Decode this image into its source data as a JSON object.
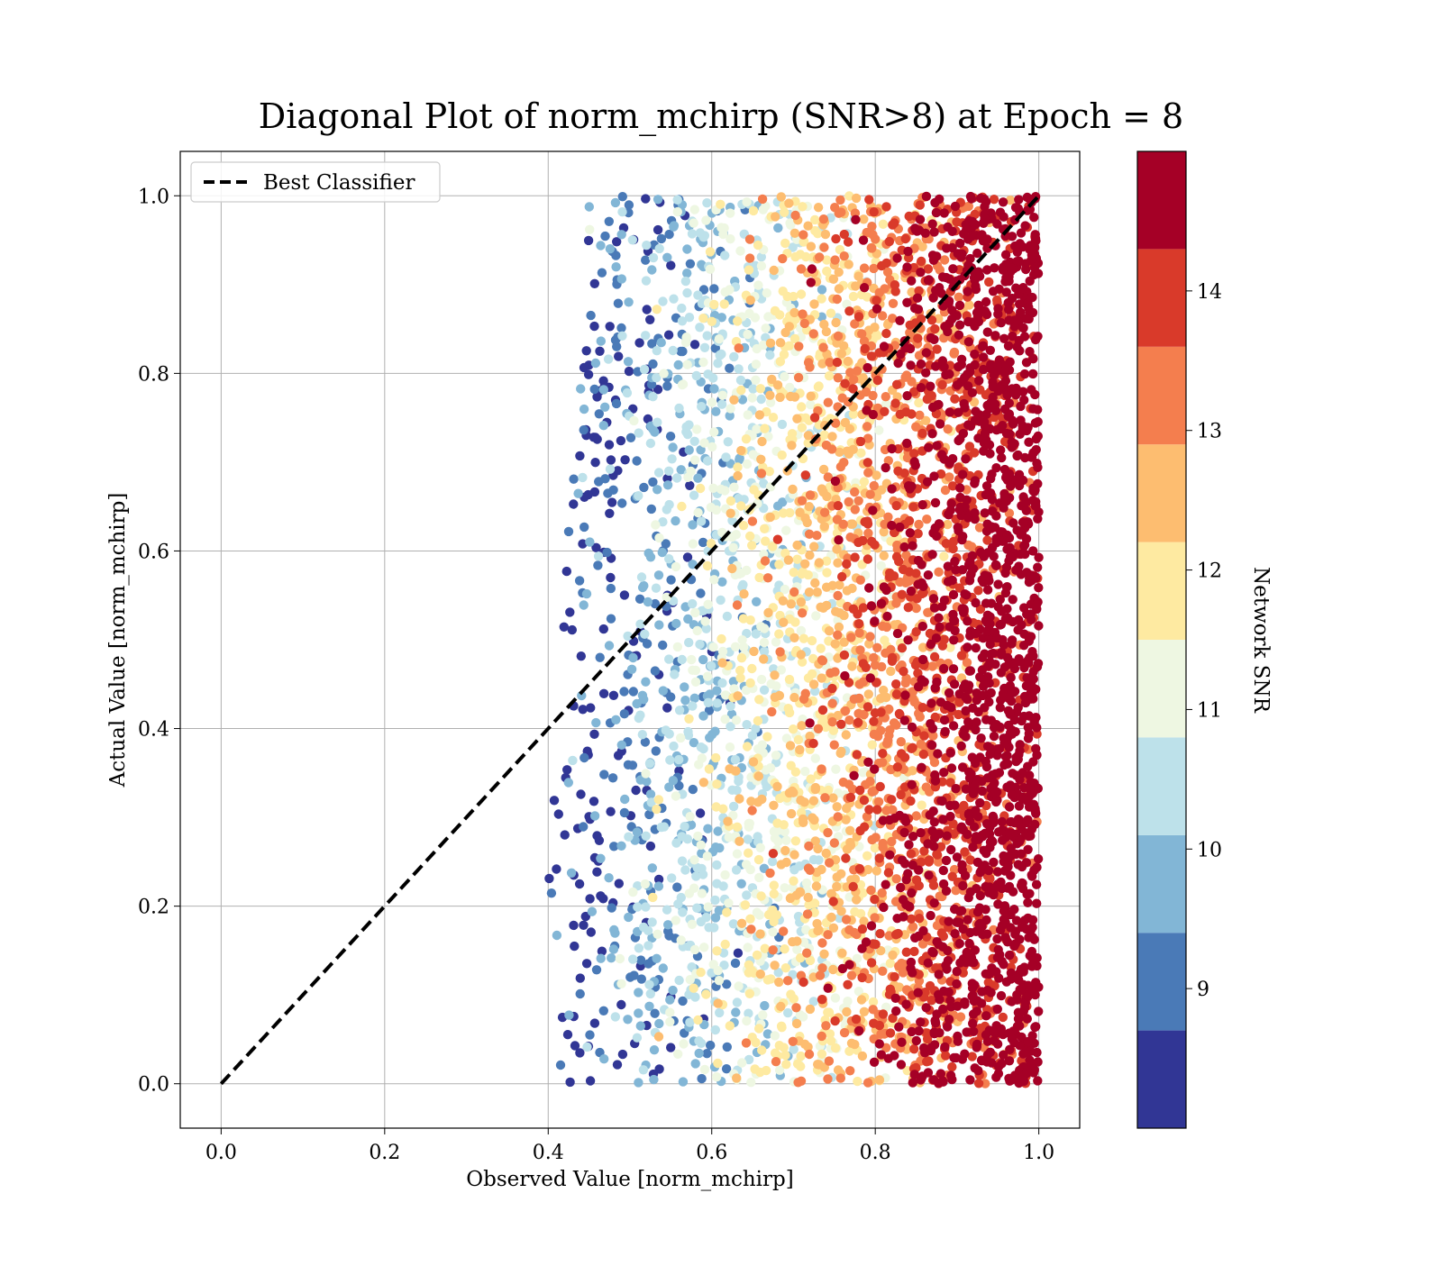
{
  "chart_data": {
    "type": "scatter",
    "title": "Diagonal Plot of norm_mchirp (SNR>8) at Epoch = 8",
    "xlabel": "Observed Value [norm_mchirp]",
    "ylabel": "Actual Value [norm_mchirp]",
    "xlim": [
      -0.05,
      1.05
    ],
    "ylim": [
      -0.05,
      1.05
    ],
    "xticks": [
      "0.0",
      "0.2",
      "0.4",
      "0.6",
      "0.8",
      "1.0"
    ],
    "yticks": [
      "0.0",
      "0.2",
      "0.4",
      "0.6",
      "0.8",
      "1.0"
    ],
    "grid": true,
    "legend": {
      "position": "top-left",
      "entries": [
        "Best Classifier"
      ]
    },
    "reference_line": {
      "name": "Best Classifier",
      "style": "dashed",
      "color": "#000000",
      "x": [
        0.0,
        1.0
      ],
      "y": [
        0.0,
        1.0
      ]
    },
    "colorbar": {
      "label": "Network SNR",
      "range": [
        8.0,
        15.0
      ],
      "ticks": [
        "9",
        "10",
        "11",
        "12",
        "13",
        "14"
      ],
      "bins": [
        {
          "from": 8.0,
          "to": 8.7,
          "color": "#313695"
        },
        {
          "from": 8.7,
          "to": 9.4,
          "color": "#4a7ab7"
        },
        {
          "from": 9.4,
          "to": 10.1,
          "color": "#82b6d6"
        },
        {
          "from": 10.1,
          "to": 10.8,
          "color": "#bde1ea"
        },
        {
          "from": 10.8,
          "to": 11.5,
          "color": "#eef7e2"
        },
        {
          "from": 11.5,
          "to": 12.2,
          "color": "#feeaa1"
        },
        {
          "from": 12.2,
          "to": 12.9,
          "color": "#fdbd70"
        },
        {
          "from": 12.9,
          "to": 13.6,
          "color": "#f47e4e"
        },
        {
          "from": 13.6,
          "to": 14.3,
          "color": "#d93a2a"
        },
        {
          "from": 14.3,
          "to": 15.0,
          "color": "#a50026"
        }
      ]
    },
    "scatter_summary": {
      "observed_range": [
        0.39,
        1.0
      ],
      "actual_range": [
        0.0,
        1.0
      ],
      "snr_trend": "Network SNR increases with observed value: low SNR (blue) near 0.4–0.6, high SNR (dark red) near 0.85–1.0"
    }
  }
}
